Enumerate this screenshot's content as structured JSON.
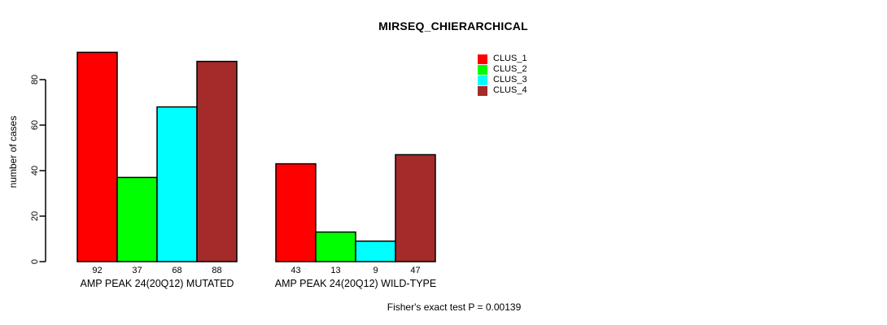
{
  "page": {
    "background": "#ffffff"
  },
  "chart_data": {
    "type": "bar",
    "title": "MIRSEQ_CHIERARCHICAL",
    "ylabel": "number of cases",
    "xlabel": "",
    "yticks": [
      0,
      20,
      40,
      60,
      80
    ],
    "ylim": [
      0,
      93
    ],
    "grid": false,
    "legend_position": "top-right",
    "bar_borders": "#000000",
    "axis_color": "#000000",
    "text_color": "#000000",
    "categories": [
      "AMP PEAK 24(20Q12) MUTATED",
      "AMP PEAK 24(20Q12) WILD-TYPE"
    ],
    "series": [
      {
        "name": "CLUS_1",
        "color": "#FF0000",
        "values": [
          92,
          43
        ]
      },
      {
        "name": "CLUS_2",
        "color": "#00FF00",
        "values": [
          37,
          13
        ]
      },
      {
        "name": "CLUS_3",
        "color": "#00FFFF",
        "values": [
          68,
          9
        ]
      },
      {
        "name": "CLUS_4",
        "color": "#A52A2A",
        "values": [
          88,
          47
        ]
      }
    ],
    "show_bar_values": true,
    "footnote": "Fisher's exact test P = 0.00139"
  }
}
